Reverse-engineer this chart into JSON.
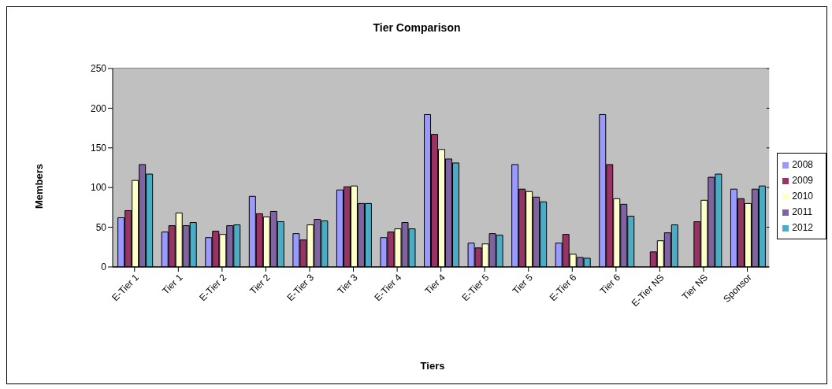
{
  "chart_data": {
    "type": "bar",
    "title": "Tier Comparison",
    "xlabel": "Tiers",
    "ylabel": "Members",
    "categories": [
      "E-Tier 1",
      "Tier 1",
      "E-Tier 2",
      "Tier 2",
      "E-Tier 3",
      "Tier 3",
      "E-Tier 4",
      "Tier 4",
      "E-Tier 5",
      "Tier 5",
      "E-Tier 6",
      "Tier 6",
      "E-Tier NS",
      "Tier NS",
      "Sponsor"
    ],
    "series": [
      {
        "name": "2008",
        "color": "#9999ff",
        "values": [
          62,
          44,
          37,
          89,
          42,
          97,
          37,
          192,
          30,
          129,
          30,
          192,
          null,
          null,
          98
        ]
      },
      {
        "name": "2009",
        "color": "#993366",
        "values": [
          71,
          52,
          45,
          67,
          34,
          101,
          44,
          167,
          24,
          98,
          41,
          129,
          19,
          57,
          86
        ]
      },
      {
        "name": "2010",
        "color": "#ffffcc",
        "values": [
          109,
          68,
          41,
          63,
          53,
          102,
          48,
          148,
          29,
          95,
          16,
          86,
          33,
          84,
          80
        ]
      },
      {
        "name": "2011",
        "color": "#8064a2",
        "values": [
          129,
          52,
          52,
          70,
          60,
          80,
          56,
          136,
          42,
          88,
          12,
          79,
          43,
          113,
          98
        ]
      },
      {
        "name": "2012",
        "color": "#4bacc6",
        "values": [
          117,
          56,
          53,
          57,
          58,
          80,
          48,
          131,
          40,
          82,
          11,
          64,
          53,
          117,
          102
        ]
      }
    ],
    "ylim": [
      0,
      250
    ],
    "yticks": [
      0,
      50,
      100,
      150,
      200,
      250
    ],
    "grid": "y",
    "legend": "right"
  }
}
